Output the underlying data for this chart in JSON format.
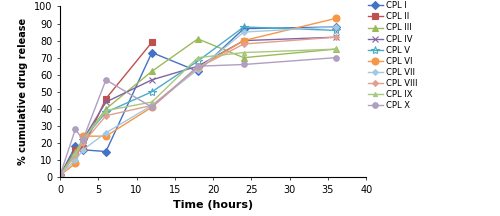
{
  "series": [
    {
      "label": "CPL I",
      "color": "#4472C4",
      "marker": "D",
      "markersize": 4,
      "x": [
        0,
        2,
        3,
        6,
        12,
        18,
        24,
        36
      ],
      "y": [
        1,
        18,
        16,
        15,
        73,
        62,
        87,
        88
      ]
    },
    {
      "label": "CPL II",
      "color": "#C0504D",
      "marker": "s",
      "markersize": 5,
      "x": [
        0,
        2,
        3,
        6,
        12
      ],
      "y": [
        1,
        16,
        17,
        46,
        79
      ]
    },
    {
      "label": "CPL III",
      "color": "#9BBB59",
      "marker": "^",
      "markersize": 5,
      "x": [
        0,
        2,
        3,
        6,
        12,
        18,
        24,
        36
      ],
      "y": [
        1,
        15,
        22,
        40,
        62,
        81,
        70,
        75
      ]
    },
    {
      "label": "CPL IV",
      "color": "#8064A2",
      "marker": "x",
      "markersize": 5,
      "x": [
        0,
        2,
        3,
        6,
        12,
        18,
        24,
        36
      ],
      "y": [
        1,
        14,
        22,
        44,
        57,
        65,
        80,
        82
      ]
    },
    {
      "label": "CPL V",
      "color": "#4BACC6",
      "marker": "*",
      "markersize": 6,
      "x": [
        0,
        2,
        3,
        6,
        12,
        18,
        24,
        36
      ],
      "y": [
        1,
        13,
        22,
        38,
        50,
        68,
        88,
        86
      ]
    },
    {
      "label": "CPL VI",
      "color": "#F79646",
      "marker": "o",
      "markersize": 5,
      "x": [
        0,
        2,
        3,
        6,
        12,
        18,
        24,
        36
      ],
      "y": [
        1,
        8,
        24,
        24,
        41,
        64,
        80,
        93
      ]
    },
    {
      "label": "CPL VII",
      "color": "#A5C8E1",
      "marker": "D",
      "markersize": 3,
      "x": [
        0,
        2,
        3,
        6,
        12,
        18,
        24,
        36
      ],
      "y": [
        1,
        10,
        16,
        26,
        42,
        63,
        85,
        88
      ]
    },
    {
      "label": "CPL VIII",
      "color": "#E0A090",
      "marker": "D",
      "markersize": 3,
      "x": [
        0,
        2,
        3,
        6,
        12,
        18,
        24,
        36
      ],
      "y": [
        1,
        13,
        20,
        36,
        42,
        64,
        78,
        82
      ]
    },
    {
      "label": "CPL IX",
      "color": "#A8C882",
      "marker": "^",
      "markersize": 3,
      "x": [
        0,
        2,
        3,
        6,
        12,
        18,
        24,
        36
      ],
      "y": [
        1,
        14,
        22,
        39,
        44,
        70,
        73,
        75
      ]
    },
    {
      "label": "CPL X",
      "color": "#B09FC0",
      "marker": "o",
      "markersize": 4,
      "x": [
        0,
        2,
        3,
        6,
        12,
        18,
        24,
        36
      ],
      "y": [
        1,
        28,
        22,
        57,
        41,
        65,
        66,
        70
      ]
    }
  ],
  "xlabel": "Time (hours)",
  "ylabel": "% cumulative drug release",
  "xlim": [
    0,
    40
  ],
  "ylim": [
    0,
    100
  ],
  "xticks": [
    0,
    5,
    10,
    15,
    20,
    25,
    30,
    35,
    40
  ],
  "yticks": [
    0,
    10,
    20,
    30,
    40,
    50,
    60,
    70,
    80,
    90,
    100
  ],
  "legend_fontsize": 6.0,
  "axis_label_fontsize": 8,
  "axis_tick_fontsize": 7,
  "background_color": "#ffffff",
  "figwidth": 5.0,
  "figheight": 2.16,
  "dpi": 100
}
